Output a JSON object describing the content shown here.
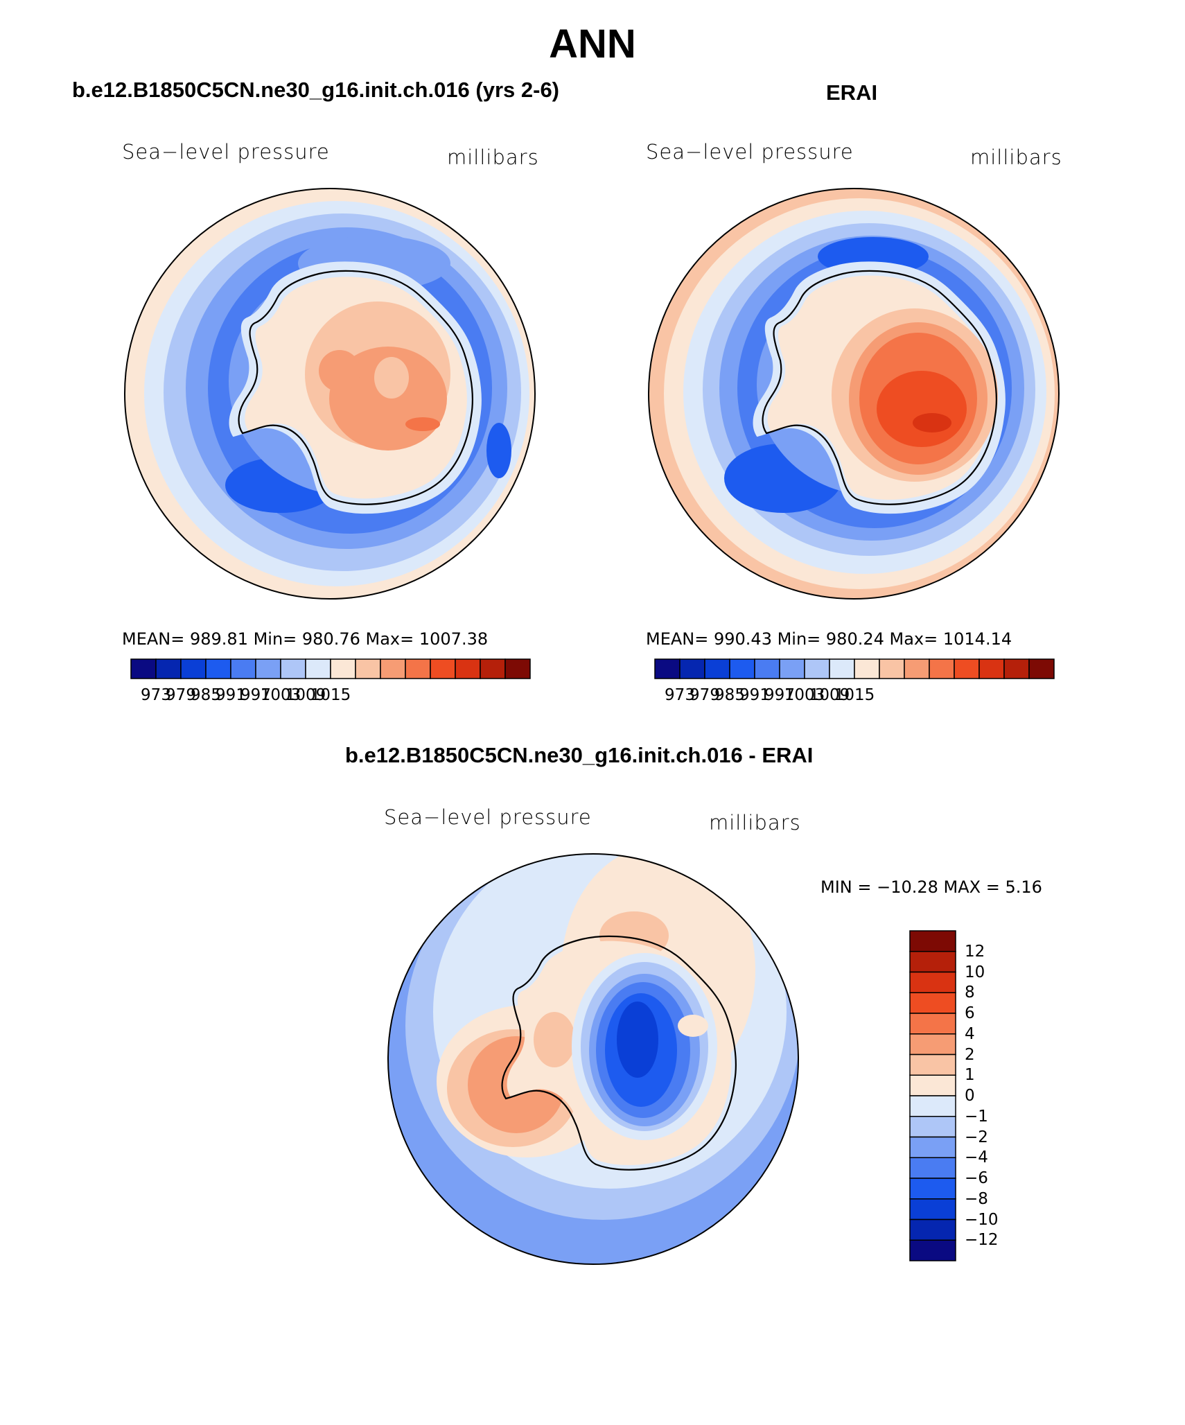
{
  "title": "ANN",
  "panels": [
    {
      "title": "b.e12.B1850C5CN.ne30_g16.init.ch.016 (yrs 2-6)",
      "variable": "Sea−level pressure",
      "units": "millibars",
      "stats": "MEAN=  989.81    Min=  980.76    Max=  1007.38",
      "mean": 989.81,
      "min": 980.76,
      "max": 1007.38
    },
    {
      "title": "ERAI",
      "variable": "Sea−level pressure",
      "units": "millibars",
      "stats": "MEAN=  990.43    Min=  980.24    Max=  1014.14",
      "mean": 990.43,
      "min": 980.24,
      "max": 1014.14
    },
    {
      "title": "b.e12.B1850C5CN.ne30_g16.init.ch.016 - ERAI",
      "variable": "Sea−level pressure",
      "units": "millibars",
      "stats": "MIN = −10.28  MAX =      5.16",
      "min": -10.28,
      "max": 5.16
    }
  ],
  "colorbar_abs": {
    "tick_labels": [
      "973",
      "979",
      "985",
      "991",
      "997",
      "1003",
      "1009",
      "1015"
    ],
    "colors": [
      "#0a0a82",
      "#0526b0",
      "#0a3fd6",
      "#1d5bef",
      "#4a7cf2",
      "#7aa0f5",
      "#aec6f7",
      "#dce9fa",
      "#fbe7d6",
      "#f9c4a5",
      "#f69c74",
      "#f47448",
      "#ee4d22",
      "#d93312",
      "#b5200a",
      "#7d0a04"
    ]
  },
  "colorbar_diff": {
    "tick_labels": [
      "12",
      "10",
      "8",
      "6",
      "4",
      "2",
      "1",
      "0",
      "−1",
      "−2",
      "−4",
      "−6",
      "−8",
      "−10",
      "−12"
    ],
    "colors": [
      "#7d0a04",
      "#b5200a",
      "#d93312",
      "#ee4d22",
      "#f47448",
      "#f69c74",
      "#f9c4a5",
      "#fbe7d6",
      "#dce9fa",
      "#aec6f7",
      "#7aa0f5",
      "#4a7cf2",
      "#1d5bef",
      "#0a3fd6",
      "#0526b0",
      "#0a0a82"
    ]
  },
  "map_colors": {
    "ocean_low": "#1d5bef",
    "ocean_mid": "#4a7cf2",
    "ocean_light": "#7aa0f5",
    "ocean_pale": "#aec6f7",
    "pale": "#dce9fa",
    "peach": "#fbe7d6",
    "salmon": "#f9c4a5",
    "orange": "#f69c74",
    "red": "#f47448",
    "dark_red": "#d93312"
  }
}
